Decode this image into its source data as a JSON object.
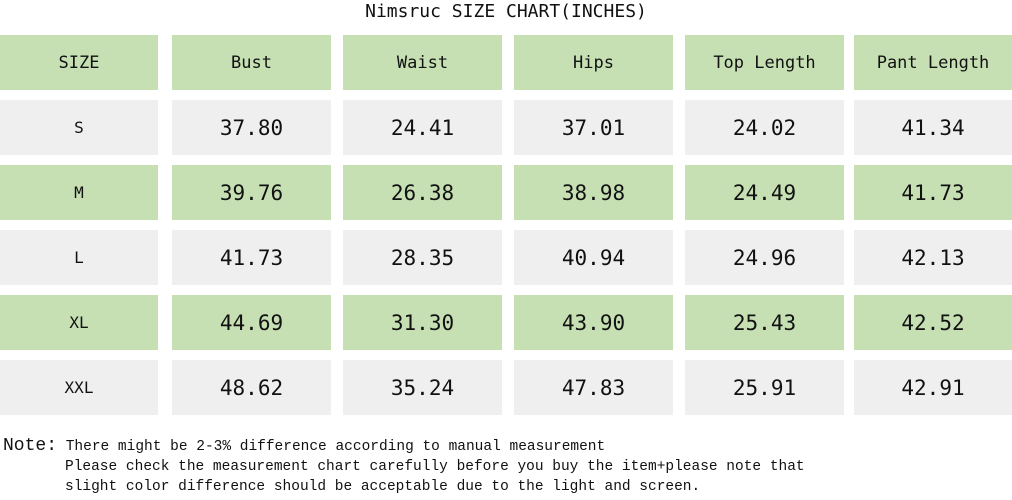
{
  "title": "Nimsruc SIZE CHART(INCHES)",
  "colors": {
    "green": "#c6e0b4",
    "gray": "#efefef"
  },
  "headers": [
    "SIZE",
    "Bust",
    "Waist",
    "Hips",
    "Top Length",
    "Pant Length"
  ],
  "rows": [
    [
      "S",
      "37.80",
      "24.41",
      "37.01",
      "24.02",
      "41.34"
    ],
    [
      "M",
      "39.76",
      "26.38",
      "38.98",
      "24.49",
      "41.73"
    ],
    [
      "L",
      "41.73",
      "28.35",
      "40.94",
      "24.96",
      "42.13"
    ],
    [
      "XL",
      "44.69",
      "31.30",
      "43.90",
      "25.43",
      "42.52"
    ],
    [
      "XXL",
      "48.62",
      "35.24",
      "47.83",
      "25.91",
      "42.91"
    ]
  ],
  "note": {
    "label": "Note:",
    "line1": "There might be 2-3% difference according to manual measurement",
    "line2": "Please check the measurement chart carefully before you buy the item+please note that",
    "line3": "slight color difference should be acceptable due to the light and screen."
  }
}
